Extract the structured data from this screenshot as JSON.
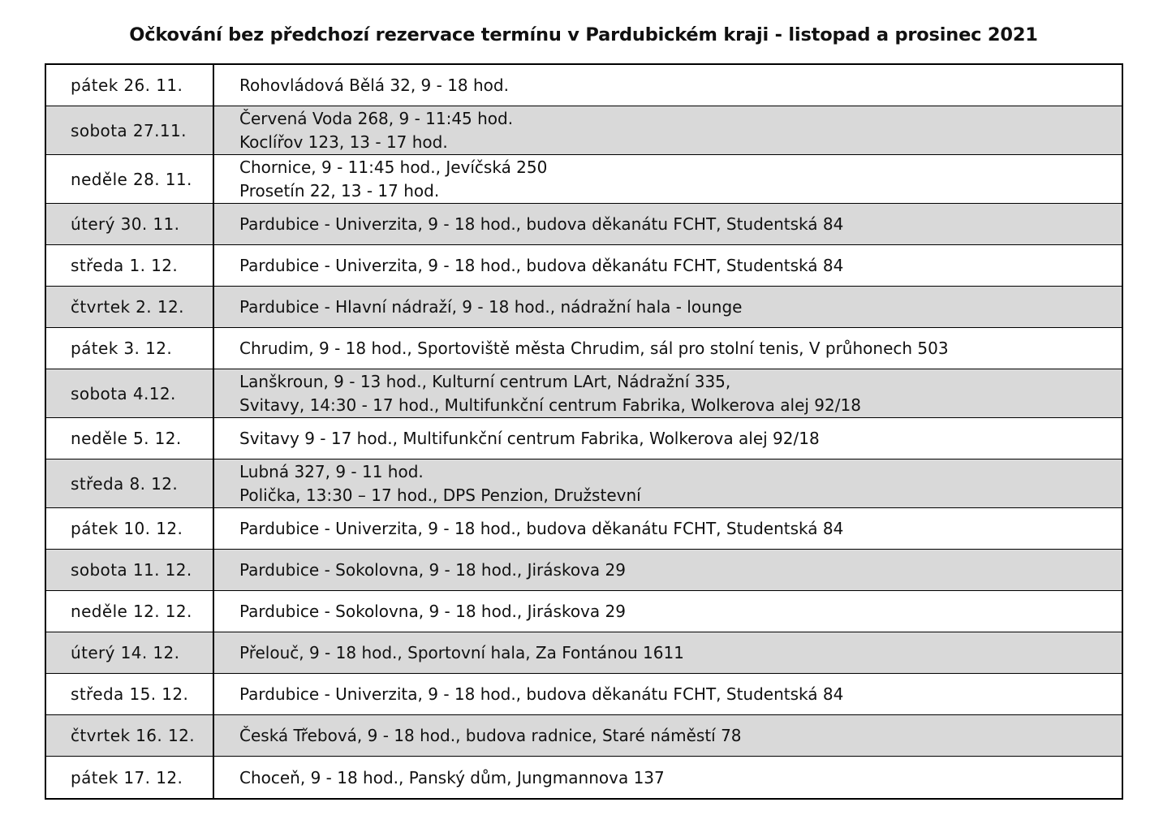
{
  "title": "Očkování bez předchozí rezervace termínu v Pardubickém kraji - listopad a prosinec 2021",
  "rows": [
    {
      "date": "pátek 26. 11.",
      "places": [
        "Rohovládová Bělá 32, 9 - 18 hod."
      ]
    },
    {
      "date": "sobota 27.11.",
      "places": [
        "Červená Voda 268, 9 - 11:45 hod.",
        "Koclířov 123, 13 - 17 hod."
      ]
    },
    {
      "date": "neděle 28. 11.",
      "places": [
        "Chornice, 9 - 11:45 hod., Jevíčská 250",
        "Prosetín 22, 13 - 17 hod."
      ]
    },
    {
      "date": "úterý 30. 11.",
      "places": [
        "Pardubice - Univerzita, 9 - 18 hod., budova děkanátu FCHT, Studentská 84"
      ]
    },
    {
      "date": "středa 1. 12.",
      "places": [
        "Pardubice - Univerzita, 9 - 18 hod., budova děkanátu FCHT, Studentská 84"
      ]
    },
    {
      "date": "čtvrtek 2. 12.",
      "places": [
        "Pardubice - Hlavní nádraží, 9 - 18 hod., nádražní hala - lounge"
      ]
    },
    {
      "date": "pátek 3. 12.",
      "places": [
        "Chrudim, 9 - 18 hod., Sportoviště města Chrudim, sál pro stolní tenis, V průhonech 503"
      ]
    },
    {
      "date": "sobota 4.12.",
      "places": [
        "Lanškroun, 9 - 13 hod., Kulturní centrum LArt, Nádražní 335,",
        "Svitavy, 14:30 - 17 hod., Multifunkční centrum Fabrika, Wolkerova alej 92/18"
      ]
    },
    {
      "date": "neděle 5. 12.",
      "places": [
        "Svitavy 9 - 17 hod., Multifunkční centrum Fabrika, Wolkerova alej 92/18"
      ]
    },
    {
      "date": "středa 8. 12.",
      "places": [
        "Lubná 327, 9 - 11 hod.",
        "Polička, 13:30 – 17 hod., DPS Penzion, Družstevní"
      ]
    },
    {
      "date": "pátek 10. 12.",
      "places": [
        "Pardubice - Univerzita, 9 - 18 hod., budova děkanátu FCHT, Studentská 84"
      ]
    },
    {
      "date": "sobota 11. 12.",
      "places": [
        "Pardubice - Sokolovna,  9 - 18 hod., Jiráskova 29"
      ]
    },
    {
      "date": "neděle 12. 12.",
      "places": [
        "Pardubice - Sokolovna,  9 - 18 hod., Jiráskova 29"
      ]
    },
    {
      "date": "úterý 14. 12.",
      "places": [
        "Přelouč, 9 - 18 hod., Sportovní hala, Za Fontánou 1611"
      ]
    },
    {
      "date": "středa 15. 12.",
      "places": [
        "Pardubice - Univerzita, 9 - 18 hod., budova děkanátu FCHT, Studentská 84"
      ]
    },
    {
      "date": "čtvrtek 16. 12.",
      "places": [
        "Česká Třebová, 9 - 18 hod., budova radnice, Staré náměstí 78"
      ]
    },
    {
      "date": "pátek 17. 12.",
      "places": [
        "Choceň, 9 - 18 hod., Panský dům, Jungmannova 137"
      ]
    }
  ]
}
